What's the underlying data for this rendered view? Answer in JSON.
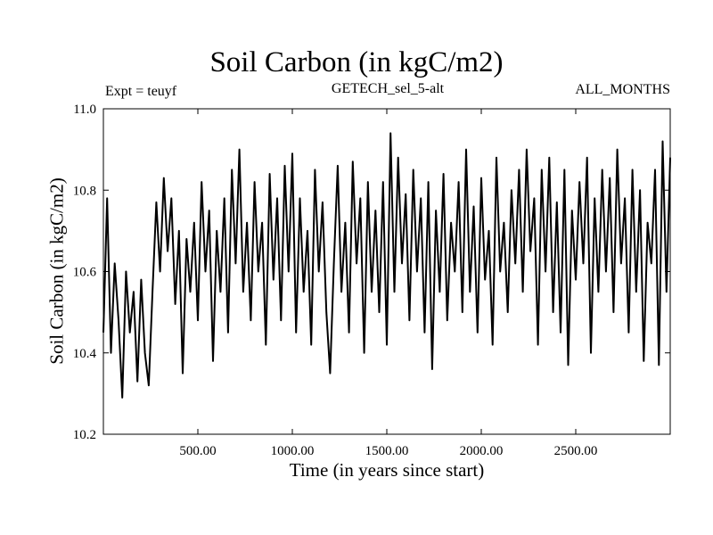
{
  "chart_data": {
    "type": "line",
    "title": "Soil Carbon (in kgC/m2)",
    "subtitle_left": "Expt = teuyf",
    "subtitle_center": "GETECH_sel_5-alt",
    "subtitle_right": "ALL_MONTHS",
    "xlabel": "Time (in years since start)",
    "ylabel": "Soil Carbon (in kgC/m2)",
    "xlim": [
      0,
      3000
    ],
    "ylim": [
      10.2,
      11.0
    ],
    "xticks": [
      500,
      1000,
      1500,
      2000,
      2500
    ],
    "xtick_labels": [
      "500.00",
      "1000.00",
      "1500.00",
      "2000.00",
      "2500.00"
    ],
    "yticks": [
      10.2,
      10.4,
      10.6,
      10.8,
      11.0
    ],
    "ytick_labels": [
      "10.2",
      "10.4",
      "10.6",
      "10.8",
      "11.0"
    ],
    "grid": false,
    "series": [
      {
        "color": "#000000",
        "x": [
          0,
          20,
          40,
          60,
          80,
          100,
          120,
          140,
          160,
          180,
          200,
          220,
          240,
          260,
          280,
          300,
          320,
          340,
          360,
          380,
          400,
          420,
          440,
          460,
          480,
          500,
          520,
          540,
          560,
          580,
          600,
          620,
          640,
          660,
          680,
          700,
          720,
          740,
          760,
          780,
          800,
          820,
          840,
          860,
          880,
          900,
          920,
          940,
          960,
          980,
          1000,
          1020,
          1040,
          1060,
          1080,
          1100,
          1120,
          1140,
          1160,
          1180,
          1200,
          1220,
          1240,
          1260,
          1280,
          1300,
          1320,
          1340,
          1360,
          1380,
          1400,
          1420,
          1440,
          1460,
          1480,
          1500,
          1520,
          1540,
          1560,
          1580,
          1600,
          1620,
          1640,
          1660,
          1680,
          1700,
          1720,
          1740,
          1760,
          1780,
          1800,
          1820,
          1840,
          1860,
          1880,
          1900,
          1920,
          1940,
          1960,
          1980,
          2000,
          2020,
          2040,
          2060,
          2080,
          2100,
          2120,
          2140,
          2160,
          2180,
          2200,
          2220,
          2240,
          2260,
          2280,
          2300,
          2320,
          2340,
          2360,
          2380,
          2400,
          2420,
          2440,
          2460,
          2480,
          2500,
          2520,
          2540,
          2560,
          2580,
          2600,
          2620,
          2640,
          2660,
          2680,
          2700,
          2720,
          2740,
          2760,
          2780,
          2800,
          2820,
          2840,
          2860,
          2880,
          2900,
          2920,
          2940,
          2960,
          2980,
          3000
        ],
        "y": [
          10.45,
          10.78,
          10.4,
          10.62,
          10.48,
          10.29,
          10.6,
          10.45,
          10.55,
          10.33,
          10.58,
          10.4,
          10.32,
          10.55,
          10.77,
          10.6,
          10.83,
          10.65,
          10.78,
          10.52,
          10.7,
          10.35,
          10.68,
          10.55,
          10.72,
          10.48,
          10.82,
          10.6,
          10.75,
          10.38,
          10.7,
          10.55,
          10.78,
          10.45,
          10.85,
          10.62,
          10.9,
          10.55,
          10.72,
          10.48,
          10.82,
          10.6,
          10.72,
          10.42,
          10.84,
          10.58,
          10.78,
          10.48,
          10.86,
          10.6,
          10.89,
          10.45,
          10.78,
          10.55,
          10.7,
          10.42,
          10.85,
          10.6,
          10.77,
          10.5,
          10.35,
          10.62,
          10.86,
          10.55,
          10.72,
          10.45,
          10.87,
          10.62,
          10.78,
          10.4,
          10.82,
          10.55,
          10.75,
          10.5,
          10.82,
          10.42,
          10.94,
          10.55,
          10.88,
          10.62,
          10.79,
          10.48,
          10.85,
          10.6,
          10.78,
          10.45,
          10.82,
          10.36,
          10.75,
          10.55,
          10.84,
          10.48,
          10.72,
          10.6,
          10.82,
          10.5,
          10.9,
          10.55,
          10.76,
          10.45,
          10.83,
          10.58,
          10.7,
          10.42,
          10.88,
          10.6,
          10.72,
          10.5,
          10.8,
          10.62,
          10.85,
          10.55,
          10.9,
          10.65,
          10.78,
          10.42,
          10.85,
          10.6,
          10.88,
          10.5,
          10.77,
          10.45,
          10.85,
          10.37,
          10.75,
          10.58,
          10.82,
          10.62,
          10.88,
          10.4,
          10.78,
          10.55,
          10.85,
          10.6,
          10.83,
          10.5,
          10.9,
          10.62,
          10.78,
          10.45,
          10.85,
          10.55,
          10.8,
          10.38,
          10.72,
          10.62,
          10.85,
          10.37,
          10.92,
          10.55,
          10.88
        ]
      }
    ]
  }
}
